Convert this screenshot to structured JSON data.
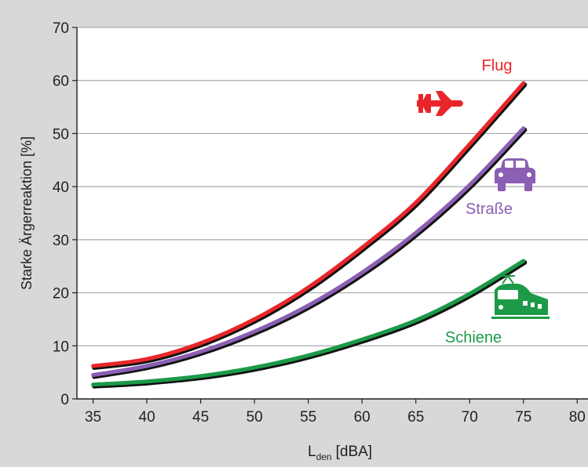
{
  "chart_data": {
    "type": "line",
    "title": "",
    "xlabel": "L",
    "xlabel_subscript": "den",
    "xlabel_unit": "[dBA]",
    "ylabel": "Starke Ärgerreaktion [%]",
    "xlim": [
      33.5,
      81
    ],
    "ylim": [
      0,
      70
    ],
    "xticks": [
      "35",
      "40",
      "45",
      "50",
      "55",
      "60",
      "65",
      "70",
      "75",
      "80"
    ],
    "yticks": [
      "0",
      "10",
      "20",
      "30",
      "40",
      "50",
      "60",
      "70"
    ],
    "grid": true,
    "x": [
      35,
      40,
      45,
      50,
      55,
      60,
      65,
      70,
      75
    ],
    "series": [
      {
        "name": "Flug",
        "color": "#e8262a",
        "icon": "airplane-icon",
        "values": [
          6.2,
          7.5,
          10.5,
          15,
          21,
          28.5,
          37,
          48,
          59.5
        ]
      },
      {
        "name": "Straße",
        "color": "#8b5fb3",
        "icon": "car-icon",
        "values": [
          4.5,
          6.2,
          8.9,
          12.7,
          17.6,
          23.8,
          31.3,
          40.3,
          51
        ]
      },
      {
        "name": "Schiene",
        "color": "#1c9a47",
        "icon": "train-icon",
        "values": [
          2.7,
          3.3,
          4.3,
          5.9,
          8.2,
          11.2,
          14.8,
          19.8,
          26
        ]
      }
    ]
  }
}
